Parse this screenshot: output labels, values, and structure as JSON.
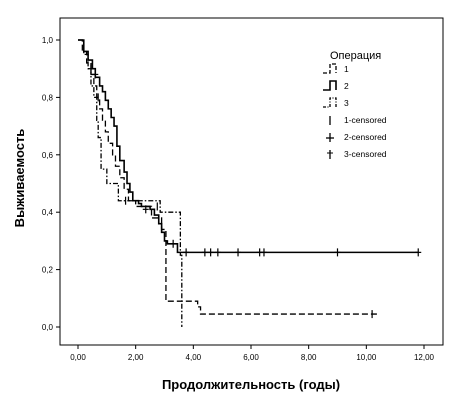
{
  "chart_data": {
    "type": "line",
    "subtype": "kaplan-meier",
    "xlabel": "Продолжительность (годы)",
    "ylabel": "Выживаемость",
    "xlim": [
      0,
      12
    ],
    "ylim": [
      0,
      1
    ],
    "xticks": [
      0,
      2,
      4,
      6,
      8,
      10,
      12
    ],
    "xtick_labels": [
      "0,00",
      "2,00",
      "4,00",
      "6,00",
      "8,00",
      "10,00",
      "12,00"
    ],
    "yticks": [
      0,
      0.2,
      0.4,
      0.6,
      0.8,
      1.0
    ],
    "ytick_labels": [
      "0,0",
      "0,2",
      "0,4",
      "0,6",
      "0,8",
      "1,0"
    ],
    "grid": false,
    "legend": {
      "title": "Операция",
      "placement": "top-right",
      "entries": [
        {
          "label": "1",
          "kind": "line",
          "style": "dash-long"
        },
        {
          "label": "2",
          "kind": "line",
          "style": "solid"
        },
        {
          "label": "3",
          "kind": "line",
          "style": "dash-dot"
        },
        {
          "label": "1-censored",
          "kind": "marker",
          "style": "dash-long"
        },
        {
          "label": "2-censored",
          "kind": "marker",
          "style": "solid"
        },
        {
          "label": "3-censored",
          "kind": "marker",
          "style": "dash-dot"
        }
      ]
    },
    "series": [
      {
        "name": "1",
        "style": "dash-long",
        "steps": [
          [
            0,
            1.0
          ],
          [
            0.15,
            0.96
          ],
          [
            0.3,
            0.92
          ],
          [
            0.45,
            0.88
          ],
          [
            0.55,
            0.84
          ],
          [
            0.65,
            0.8
          ],
          [
            0.75,
            0.76
          ],
          [
            0.85,
            0.72
          ],
          [
            0.95,
            0.68
          ],
          [
            1.05,
            0.64
          ],
          [
            1.2,
            0.6
          ],
          [
            1.3,
            0.56
          ],
          [
            1.45,
            0.52
          ],
          [
            1.6,
            0.48
          ],
          [
            1.75,
            0.44
          ],
          [
            2.0,
            0.42
          ],
          [
            2.55,
            0.38
          ],
          [
            2.9,
            0.34
          ],
          [
            3.05,
            0.09
          ],
          [
            3.6,
            0.09
          ],
          [
            4.15,
            0.07
          ],
          [
            4.25,
            0.045
          ],
          [
            10.4,
            0.045
          ]
        ],
        "censored": [
          [
            10.2,
            0.045
          ]
        ]
      },
      {
        "name": "2",
        "style": "solid",
        "steps": [
          [
            0,
            1.0
          ],
          [
            0.2,
            0.96
          ],
          [
            0.35,
            0.93
          ],
          [
            0.5,
            0.9
          ],
          [
            0.6,
            0.87
          ],
          [
            0.75,
            0.84
          ],
          [
            0.85,
            0.82
          ],
          [
            0.95,
            0.79
          ],
          [
            1.05,
            0.76
          ],
          [
            1.15,
            0.73
          ],
          [
            1.25,
            0.7
          ],
          [
            1.35,
            0.63
          ],
          [
            1.45,
            0.58
          ],
          [
            1.6,
            0.54
          ],
          [
            1.7,
            0.5
          ],
          [
            1.8,
            0.47
          ],
          [
            1.9,
            0.44
          ],
          [
            2.1,
            0.43
          ],
          [
            2.2,
            0.42
          ],
          [
            2.5,
            0.41
          ],
          [
            2.65,
            0.39
          ],
          [
            2.8,
            0.36
          ],
          [
            2.9,
            0.33
          ],
          [
            3.0,
            0.3
          ],
          [
            3.1,
            0.29
          ],
          [
            3.45,
            0.26
          ],
          [
            11.8,
            0.26
          ]
        ],
        "censored": [
          [
            0.45,
            0.9
          ],
          [
            0.6,
            0.88
          ],
          [
            2.35,
            0.41
          ],
          [
            3.3,
            0.29
          ],
          [
            3.75,
            0.26
          ],
          [
            4.4,
            0.26
          ],
          [
            4.6,
            0.26
          ],
          [
            4.85,
            0.26
          ],
          [
            5.55,
            0.26
          ],
          [
            6.3,
            0.26
          ],
          [
            6.45,
            0.26
          ],
          [
            9.0,
            0.26
          ],
          [
            11.8,
            0.26
          ]
        ]
      },
      {
        "name": "3",
        "style": "dash-dot",
        "steps": [
          [
            0,
            1.0
          ],
          [
            0.2,
            0.95
          ],
          [
            0.35,
            0.9
          ],
          [
            0.45,
            0.84
          ],
          [
            0.55,
            0.8
          ],
          [
            0.65,
            0.72
          ],
          [
            0.7,
            0.66
          ],
          [
            0.8,
            0.55
          ],
          [
            1.0,
            0.5
          ],
          [
            1.4,
            0.44
          ],
          [
            2.6,
            0.44
          ],
          [
            2.85,
            0.4
          ],
          [
            3.55,
            0.25
          ],
          [
            3.6,
            0.0
          ]
        ],
        "censored": [
          [
            0.7,
            0.8
          ],
          [
            1.65,
            0.44
          ],
          [
            2.75,
            0.42
          ]
        ]
      }
    ]
  }
}
